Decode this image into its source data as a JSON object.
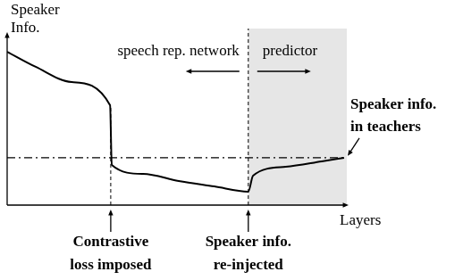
{
  "chart_data": {
    "type": "line",
    "x_label": "Layers",
    "y_label": [
      "Speaker",
      "Info."
    ],
    "xlim": [
      0,
      100
    ],
    "ylim": [
      0,
      100
    ],
    "tick_labels": false,
    "grid": false,
    "series": [
      {
        "color": "#000000",
        "line_style": "solid",
        "x": [
          0,
          8.4,
          19,
          30.3,
          30.8,
          40,
          50.5,
          61,
          71,
          72.4,
          82,
          92.6,
          99.2
        ],
        "values": [
          90.5,
          81.6,
          72.6,
          59,
          23.7,
          18.4,
          14.2,
          11,
          7.9,
          17.4,
          22.6,
          25.8,
          27.9
        ]
      }
    ],
    "reference_lines": [
      {
        "y": 28,
        "label": [
          "Speaker info.",
          "in teachers"
        ],
        "line_style": "dashdot",
        "color": "#000000"
      }
    ],
    "markers": [
      {
        "x": 30.5,
        "label": [
          "Contrastive",
          "loss imposed"
        ]
      },
      {
        "x": 71,
        "label": [
          "Speaker info.",
          "re-injected"
        ]
      }
    ],
    "regions": [
      {
        "from": 0,
        "to": 71,
        "label": "speech rep. network"
      },
      {
        "from": 71,
        "to": 100,
        "label": "predictor",
        "color": "#e6e6e6"
      }
    ]
  }
}
